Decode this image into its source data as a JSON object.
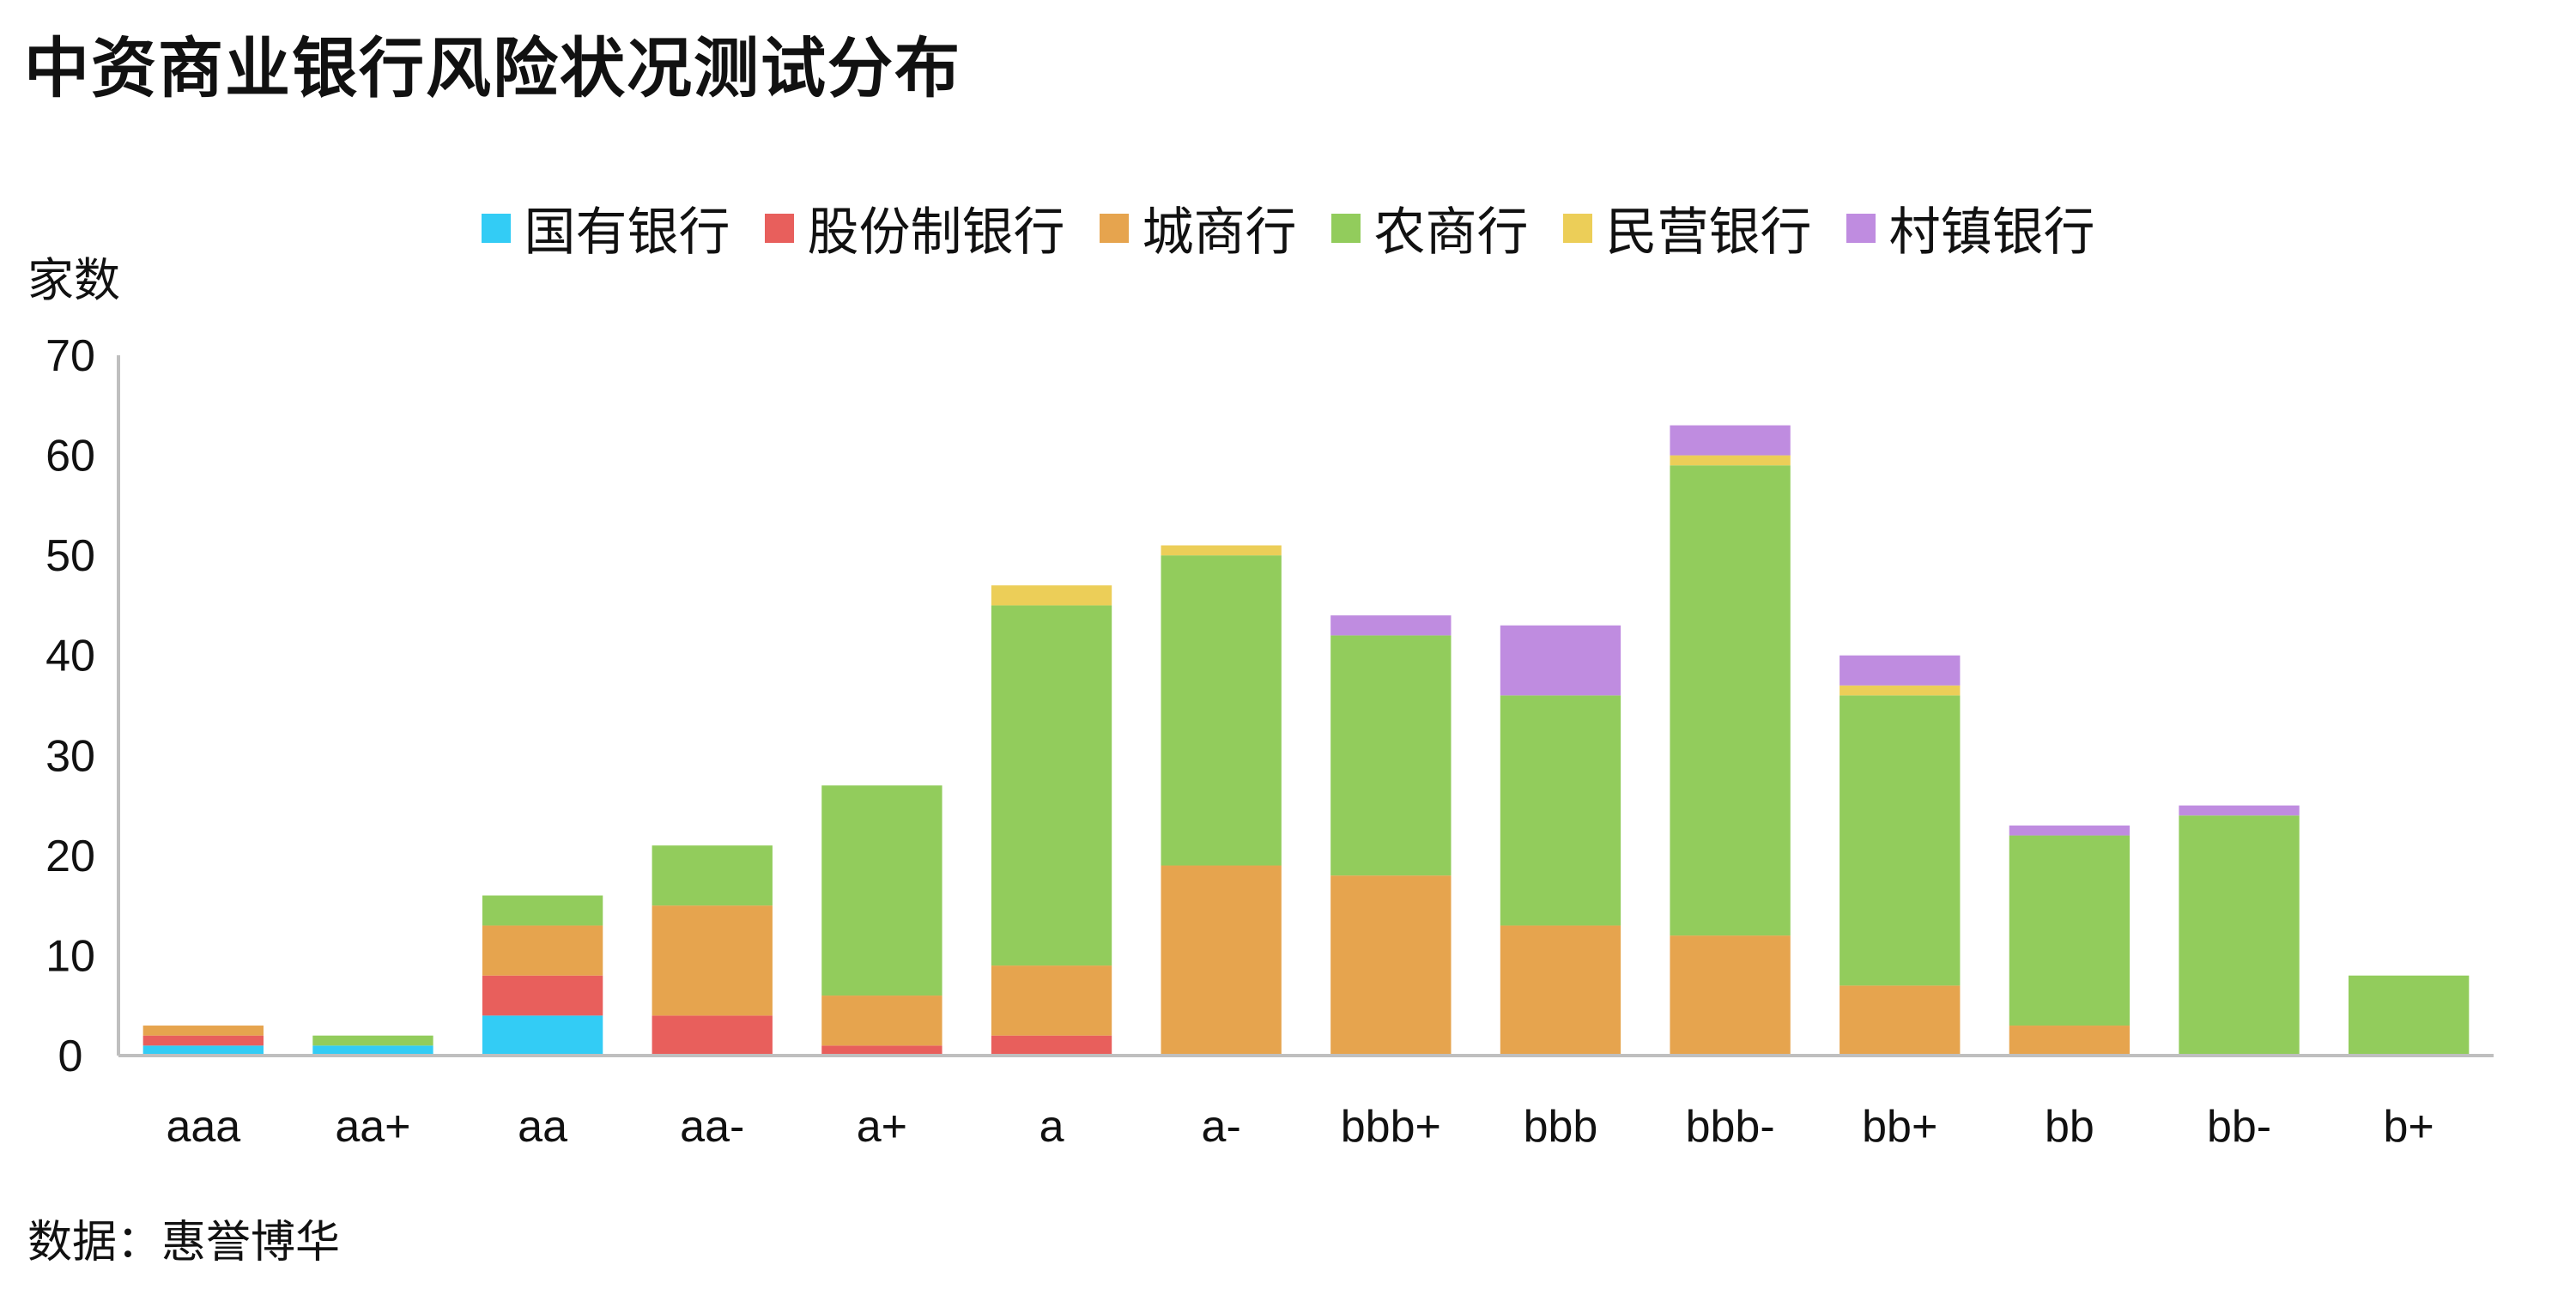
{
  "title": "中资商业银行风险状况测试分布",
  "source": "数据：惠誉博华",
  "chart_data": {
    "type": "bar",
    "stacked": true,
    "ylabel": "家数",
    "xlabel": "",
    "ylim": [
      0,
      70
    ],
    "yticks": [
      0,
      10,
      20,
      30,
      40,
      50,
      60,
      70
    ],
    "legend_position": "top-center",
    "grid": false,
    "categories": [
      "aaa",
      "aa+",
      "aa",
      "aa-",
      "a+",
      "a",
      "a-",
      "bbb+",
      "bbb",
      "bbb-",
      "bb+",
      "bb",
      "bb-",
      "b+"
    ],
    "series": [
      {
        "name": "国有银行",
        "color": "#33ccf5",
        "values": [
          1,
          1,
          4,
          0,
          0,
          0,
          0,
          0,
          0,
          0,
          0,
          0,
          0,
          0
        ]
      },
      {
        "name": "股份制银行",
        "color": "#e85f5c",
        "values": [
          1,
          0,
          4,
          4,
          1,
          2,
          0,
          0,
          0,
          0,
          0,
          0,
          0,
          0
        ]
      },
      {
        "name": "城商行",
        "color": "#e6a44e",
        "values": [
          1,
          0,
          5,
          11,
          5,
          7,
          19,
          18,
          13,
          12,
          7,
          3,
          0,
          0
        ]
      },
      {
        "name": "农商行",
        "color": "#92cc5c",
        "values": [
          0,
          1,
          3,
          6,
          21,
          36,
          31,
          24,
          23,
          47,
          29,
          19,
          24,
          8
        ]
      },
      {
        "name": "民营银行",
        "color": "#ecce58",
        "values": [
          0,
          0,
          0,
          0,
          0,
          2,
          1,
          0,
          0,
          1,
          1,
          0,
          0,
          0
        ]
      },
      {
        "name": "村镇银行",
        "color": "#bf8ce0",
        "values": [
          0,
          0,
          0,
          0,
          0,
          0,
          0,
          2,
          7,
          3,
          3,
          1,
          1,
          0
        ]
      }
    ]
  }
}
